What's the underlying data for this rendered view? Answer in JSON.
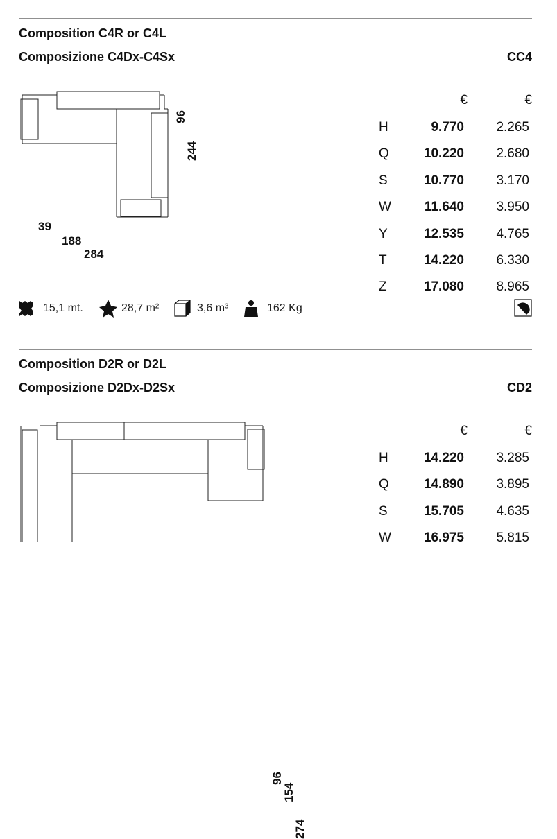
{
  "sections": [
    {
      "title": "Composition C4R or C4L",
      "subtitle": "Composizione C4Dx-C4Sx",
      "code": "CC4",
      "dimensions": [
        "96",
        "244",
        "39",
        "188",
        "284"
      ],
      "price_headers": [
        "€",
        "€"
      ],
      "prices": [
        [
          "H",
          "9.770",
          "2.265"
        ],
        [
          "Q",
          "10.220",
          "2.680"
        ],
        [
          "S",
          "10.770",
          "3.170"
        ],
        [
          "W",
          "11.640",
          "3.950"
        ],
        [
          "Y",
          "12.535",
          "4.765"
        ],
        [
          "T",
          "14.220",
          "6.330"
        ],
        [
          "Z",
          "17.080",
          "8.965"
        ]
      ],
      "specs": [
        "15,1 mt.",
        "28,7 m²",
        "3,6 m³",
        "162 Kg"
      ]
    },
    {
      "title": "Composition D2R or D2L",
      "subtitle": "Composizione D2Dx-D2Sx",
      "code": "CD2",
      "dimensions": [
        "96",
        "154",
        "274"
      ],
      "price_headers": [
        "€",
        "€"
      ],
      "prices": [
        [
          "H",
          "14.220",
          "3.285"
        ],
        [
          "Q",
          "14.890",
          "3.895"
        ],
        [
          "S",
          "15.705",
          "4.635"
        ],
        [
          "W",
          "16.975",
          "5.815"
        ]
      ]
    }
  ]
}
